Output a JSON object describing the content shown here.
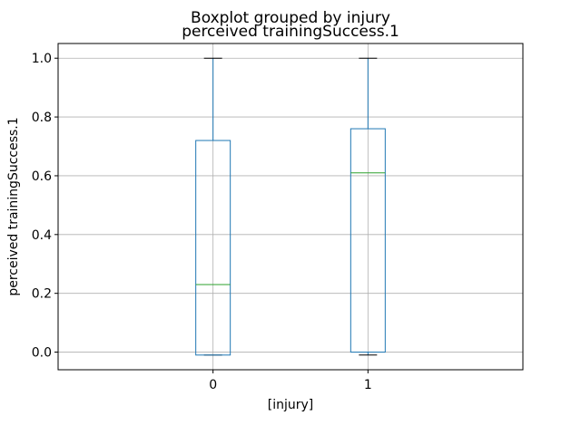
{
  "chart_data": {
    "type": "boxplot",
    "suptitle": "Boxplot grouped by injury",
    "title": "perceived trainingSuccess.1",
    "xlabel": "[injury]",
    "ylabel": "perceived trainingSuccess.1",
    "categories": [
      "0",
      "1"
    ],
    "ylim": [
      -0.06,
      1.05
    ],
    "yticks": [
      0.0,
      0.2,
      0.4,
      0.6,
      0.8,
      1.0
    ],
    "ytick_labels": [
      "0.0",
      "0.2",
      "0.4",
      "0.6",
      "0.8",
      "1.0"
    ],
    "grid": true,
    "boxes": [
      {
        "category": "0",
        "whisker_low": -0.01,
        "q1": -0.01,
        "median": 0.23,
        "q3": 0.72,
        "whisker_high": 1.0
      },
      {
        "category": "1",
        "whisker_low": -0.01,
        "q1": 0.0,
        "median": 0.61,
        "q3": 0.76,
        "whisker_high": 1.0
      }
    ],
    "colors": {
      "box": "#1f77b4",
      "median": "#2ca02c",
      "whisker": "#1f77b4",
      "cap": "#000000",
      "grid": "#b0b0b0"
    }
  }
}
